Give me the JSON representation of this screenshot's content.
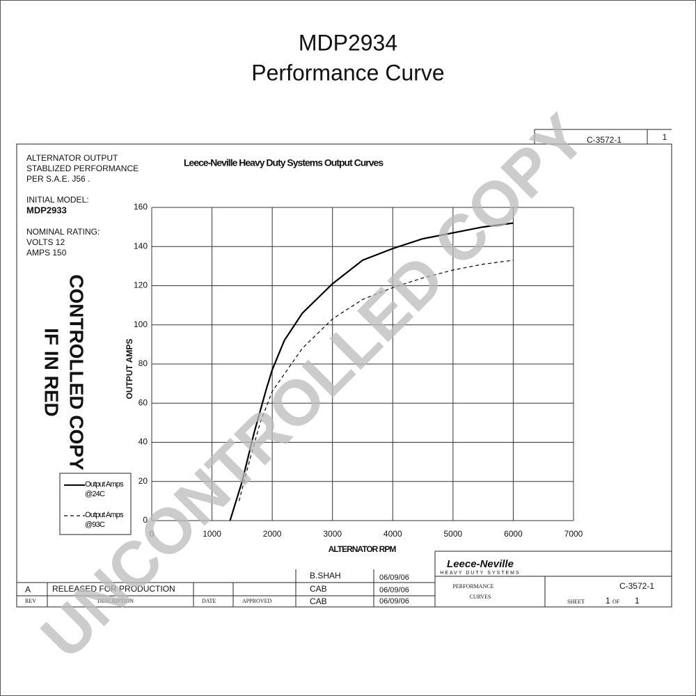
{
  "chart_data": {
    "type": "line",
    "title": "Leece-Neville Heavy Duty Systems Output Curves",
    "x_label": "ALTERNATOR RPM",
    "y_label": "OUTPUT AMPS",
    "xlim": [
      0,
      7000
    ],
    "xticks": [
      0,
      1000,
      2000,
      3000,
      4000,
      5000,
      6000,
      7000
    ],
    "ylim": [
      0,
      160
    ],
    "yticks": [
      0,
      20,
      40,
      60,
      80,
      100,
      120,
      140,
      160
    ],
    "grid": true,
    "legend": "lower left",
    "series": [
      {
        "name": "Output Amps @24C",
        "color": "#000000",
        "dash": false,
        "x": [
          1300,
          1500,
          1700,
          1900,
          2000,
          2200,
          2500,
          3000,
          3500,
          4000,
          4500,
          5000,
          5500,
          6000
        ],
        "values": [
          0,
          20,
          45,
          67,
          77,
          92,
          106,
          121,
          133,
          139,
          144,
          147,
          150,
          152
        ]
      },
      {
        "name": "Output Amps @93C",
        "color": "#000000",
        "dash": true,
        "x": [
          1450,
          1600,
          1800,
          2000,
          2500,
          3000,
          3500,
          4000,
          4500,
          5000,
          5500,
          6000
        ],
        "values": [
          10,
          28,
          50,
          66,
          88,
          103,
          113,
          119,
          124,
          128,
          131,
          133
        ]
      }
    ]
  },
  "header": {
    "title": "MDP2934",
    "subtitle": "Performance Curve"
  },
  "notes": [
    "ALTERNATOR OUTPUT",
    "STABLIZED PERFORMANCE",
    "PER S.A.E. J56 .",
    "INITIAL MODEL:",
    "MDP2933",
    "NOMINAL RATING:",
    "VOLTS 12",
    "AMPS 150"
  ],
  "stamp": [
    "CONTROLLED COPY",
    "IF IN RED"
  ],
  "watermark": "UNCONTROLLED COPY",
  "title_block": {
    "drawing_number": "C-3572-1",
    "sheet_top": "1",
    "rev": "A",
    "description": "RELEASED FOR PRODUCTION",
    "rev_label": "REV",
    "description_label": "DESCRIPTION",
    "date_label": "DATE",
    "approved_label": "APPROVED",
    "drawn_by": "B.SHAH",
    "checked_by": "CAB",
    "approved_by": "CAB",
    "date1": "06/09/06",
    "date2": "06/09/06",
    "date3": "06/09/06",
    "company": "Leece-Neville",
    "division": "HEAVY DUTY SYSTEMS",
    "name1": "PERFORMANCE",
    "name2": "CURVES",
    "curve_number": "C-3572-1",
    "sheet_label": "SHEET",
    "sheet": "1",
    "of_label": "OF",
    "sheets": "1"
  }
}
